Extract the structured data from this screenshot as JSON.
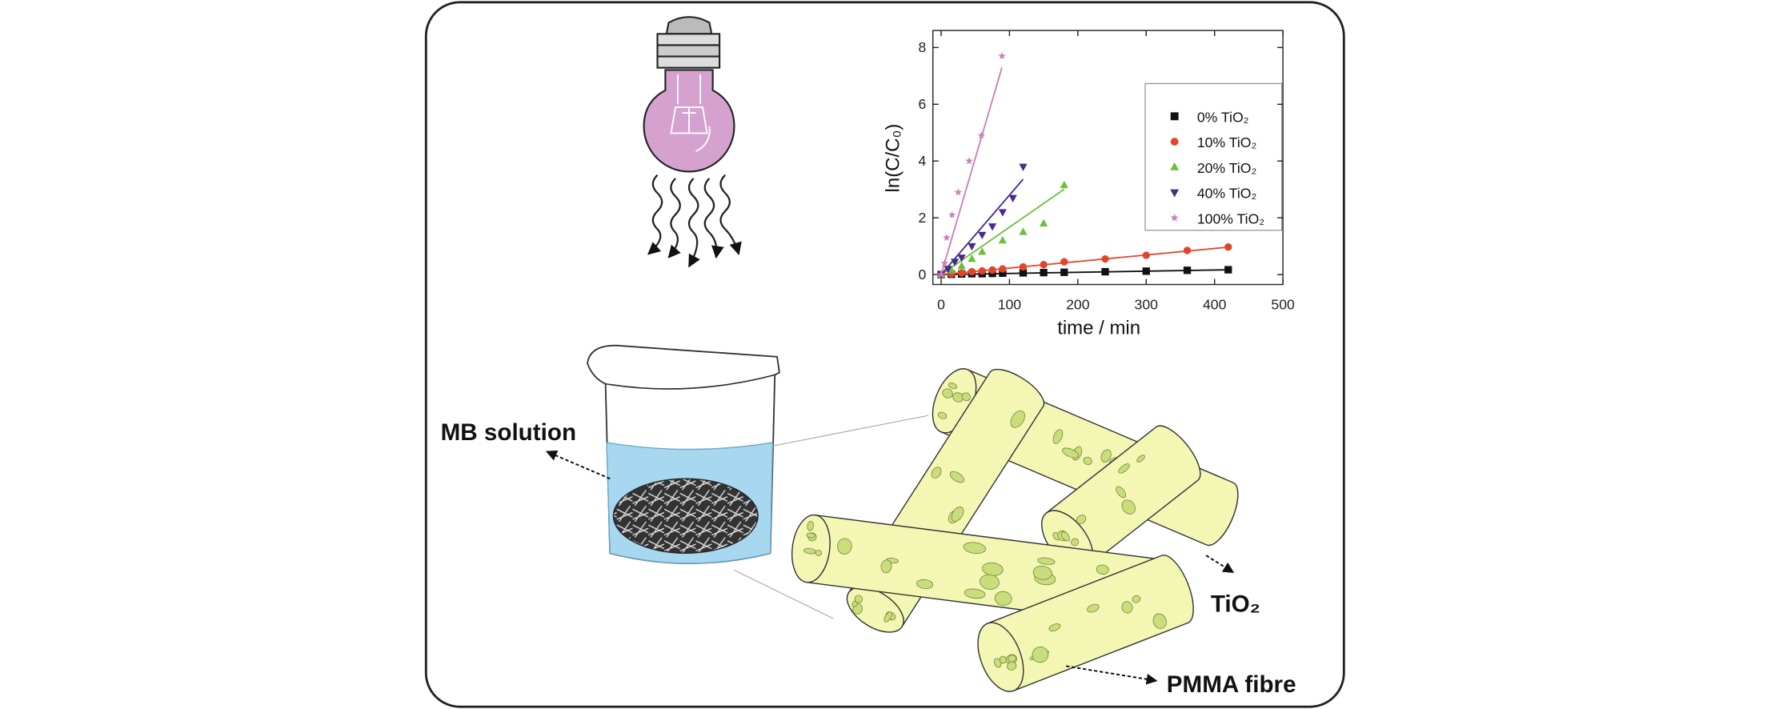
{
  "chart_data": {
    "type": "scatter",
    "x_label": "time / min",
    "y_label": "ln(C/C₀)",
    "xlim": [
      -12,
      500
    ],
    "ylim": [
      -0.35,
      8.6
    ],
    "xticks": [
      0,
      100,
      200,
      300,
      400,
      500
    ],
    "yticks": [
      0,
      2,
      4,
      6,
      8
    ],
    "legend": "upper right",
    "series": [
      {
        "name": "0% TiO₂",
        "color": "#111111",
        "marker": "square",
        "fit_slope": 0.0004,
        "x": [
          0,
          15,
          30,
          45,
          60,
          75,
          90,
          120,
          150,
          180,
          240,
          300,
          360,
          420
        ],
        "values": [
          0,
          0.01,
          0.02,
          0.03,
          0.03,
          0.04,
          0.05,
          0.06,
          0.07,
          0.08,
          0.1,
          0.12,
          0.15,
          0.17
        ]
      },
      {
        "name": "10% TiO₂",
        "color": "#e2452b",
        "marker": "circle",
        "fit_slope": 0.0023,
        "x": [
          0,
          15,
          30,
          45,
          60,
          75,
          90,
          120,
          150,
          180,
          240,
          300,
          360,
          420
        ],
        "values": [
          0,
          0.03,
          0.06,
          0.1,
          0.13,
          0.16,
          0.2,
          0.27,
          0.35,
          0.45,
          0.55,
          0.68,
          0.85,
          0.97
        ]
      },
      {
        "name": "20% TiO₂",
        "color": "#6cbf3c",
        "marker": "triangle-up",
        "fit_slope": 0.0167,
        "x": [
          0,
          15,
          30,
          45,
          60,
          90,
          120,
          150,
          180
        ],
        "values": [
          0,
          0.15,
          0.3,
          0.55,
          0.8,
          1.2,
          1.5,
          1.8,
          3.15
        ]
      },
      {
        "name": "40% TiO₂",
        "color": "#4a2a8c",
        "marker": "triangle-down",
        "fit_slope": 0.028,
        "x": [
          0,
          10,
          20,
          30,
          45,
          60,
          75,
          90,
          105,
          120
        ],
        "values": [
          0,
          0.2,
          0.45,
          0.6,
          1.0,
          1.4,
          1.7,
          2.2,
          2.7,
          3.8
        ]
      },
      {
        "name": "100% TiO₂",
        "color": "#c97fb8",
        "marker": "star",
        "fit_slope": 0.082,
        "x": [
          0,
          5,
          8,
          16,
          25,
          41,
          59,
          89
        ],
        "values": [
          0,
          0.4,
          1.3,
          2.1,
          2.9,
          4.0,
          4.9,
          7.7
        ]
      }
    ]
  },
  "labels": {
    "mb_solution": "MB solution",
    "tio2": "TiO₂",
    "pmma_fibre": "PMMA fibre"
  }
}
